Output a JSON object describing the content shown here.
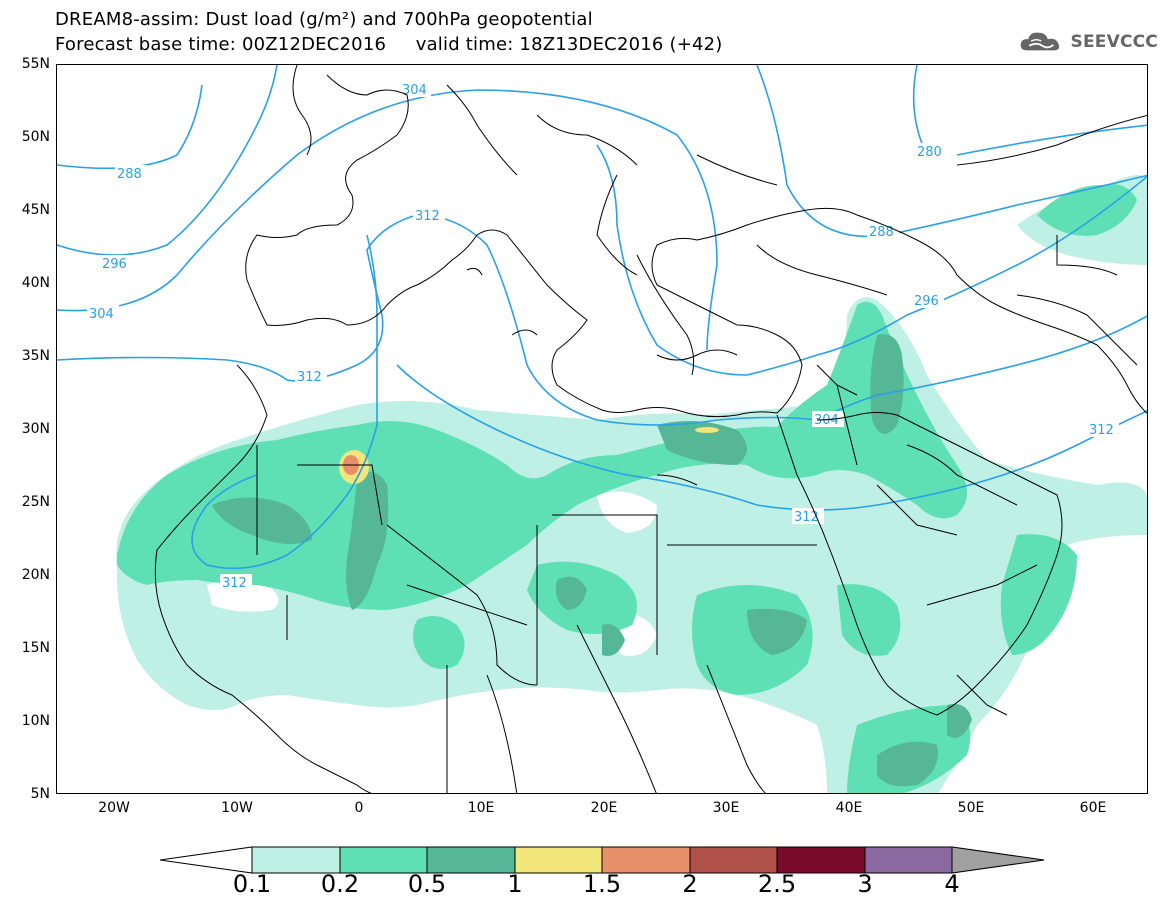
{
  "title_line1": "DREAM8-assim: Dust load (g/m²) and 700hPa geopotential",
  "title_line2": "Forecast base time: 00Z12DEC2016     valid time: 18Z13DEC2016 (+42)",
  "logo_text": "SEEVCCC",
  "lat_labels": [
    "55N",
    "50N",
    "45N",
    "40N",
    "35N",
    "30N",
    "25N",
    "20N",
    "15N",
    "10N",
    "5N"
  ],
  "lon_labels": [
    "20W",
    "10W",
    "0",
    "10E",
    "20E",
    "30E",
    "40E",
    "50E",
    "60E"
  ],
  "contour_labels": [
    "304",
    "288",
    "296",
    "304",
    "312",
    "312",
    "312",
    "280",
    "288",
    "296",
    "304",
    "312",
    "312"
  ],
  "colorbar": {
    "labels": [
      "0.1",
      "0.2",
      "0.5",
      "1",
      "1.5",
      "2",
      "2.5",
      "3",
      "4"
    ],
    "colors": [
      "#ffffff",
      "#bff0e6",
      "#5fe0b4",
      "#55b795",
      "#f2e57a",
      "#e8906a",
      "#b0524a",
      "#7a0a2a",
      "#8a6aa0",
      "#a0a0a0"
    ]
  },
  "dust_colors": {
    "light": "#bff0e6",
    "medium": "#5fe0b4",
    "dark": "#55b795",
    "yellow": "#f2e57a",
    "orange": "#e8906a"
  },
  "contour_color": "#2aa0e6"
}
